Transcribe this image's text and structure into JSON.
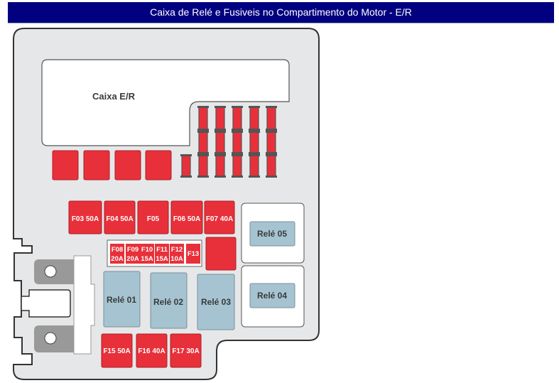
{
  "header": {
    "title": "Caixa de Relé e Fusiveis no Compartimento do Motor - E/R"
  },
  "diagram": {
    "box_label": "Caixa E/R",
    "colors": {
      "fuse": "#e8303a",
      "relay": "#a5c3d0",
      "body": "#e6e7e9",
      "outline": "#333333",
      "header": "#000080"
    },
    "large_fuses": [
      {
        "l1": "F03 50A"
      },
      {
        "l1": "F04 50A"
      },
      {
        "l1": "F05"
      },
      {
        "l1": "F06 50A"
      },
      {
        "l1": "F07 40A"
      }
    ],
    "small_fuses": [
      {
        "l1": "F08",
        "l2": "20A"
      },
      {
        "l1": "F09",
        "l2": "20A"
      },
      {
        "l1": "F10",
        "l2": "15A"
      },
      {
        "l1": "F11",
        "l2": "15A"
      },
      {
        "l1": "F12",
        "l2": "10A"
      },
      {
        "l1": "F13",
        "l2": ""
      }
    ],
    "bottom_fuses": [
      {
        "l1": "F15 50A"
      },
      {
        "l1": "F16 40A"
      },
      {
        "l1": "F17 30A"
      }
    ],
    "relays": {
      "r01": "Relé 01",
      "r02": "Relé 02",
      "r03": "Relé 03",
      "r04": "Relé 04",
      "r05": "Relé 05"
    }
  }
}
